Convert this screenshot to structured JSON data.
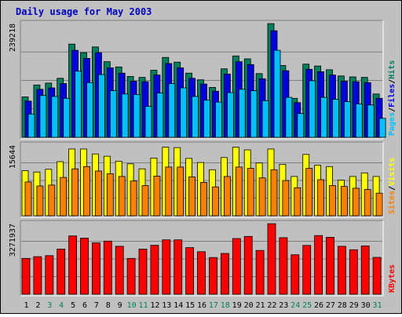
{
  "colors": {
    "background": "#c0c0c0",
    "title": "#0000c0",
    "hits": "#00805c",
    "files": "#0000e0",
    "pages": "#00c0ff",
    "visits": "#ffff00",
    "sites": "#ff8000",
    "kbytes": "#ff0000",
    "weekend_label": "#00805c",
    "weekday_label": "#000000"
  },
  "chart_data": {
    "title": "Daily usage for May 2003",
    "type": "bar",
    "categories": [
      "1",
      "2",
      "3",
      "4",
      "5",
      "6",
      "7",
      "8",
      "9",
      "10",
      "11",
      "12",
      "13",
      "14",
      "15",
      "16",
      "17",
      "18",
      "19",
      "20",
      "21",
      "22",
      "23",
      "24",
      "25",
      "26",
      "27",
      "28",
      "29",
      "30",
      "31"
    ],
    "weekend_days": [
      "3",
      "4",
      "10",
      "11",
      "17",
      "18",
      "24",
      "25",
      "31"
    ],
    "panels": [
      {
        "name": "hits-files-pages",
        "ymax_label": "239218",
        "ylim": [
          0,
          239218
        ],
        "legend": [
          {
            "text": "Pages",
            "color_key": "pages"
          },
          {
            "text": "/",
            "color_key": "separator"
          },
          {
            "text": "Files",
            "color_key": "files"
          },
          {
            "text": "/",
            "color_key": "separator"
          },
          {
            "text": "Hits",
            "color_key": "hits"
          }
        ],
        "series": [
          {
            "name": "Hits",
            "color_key": "hits",
            "values": [
              85000,
              110000,
              114000,
              124000,
              196000,
              178000,
              190000,
              159000,
              148000,
              128000,
              126000,
              141000,
              168000,
              158000,
              135000,
              121000,
              105000,
              144000,
              171000,
              165000,
              134000,
              239000,
              151000,
              82000,
              154000,
              150000,
              142000,
              129000,
              127000,
              126000,
              91000
            ]
          },
          {
            "name": "Files",
            "color_key": "files",
            "values": [
              76000,
              101000,
              104000,
              113000,
              183000,
              166000,
              178000,
              146000,
              135000,
              118000,
              117000,
              131000,
              155000,
              146000,
              124000,
              112000,
              97000,
              133000,
              159000,
              153000,
              123000,
              224000,
              140000,
              73000,
              143000,
              138000,
              131000,
              118000,
              117000,
              115000,
              82000
            ]
          },
          {
            "name": "Pages",
            "color_key": "pages",
            "values": [
              49000,
              88000,
              86000,
              82000,
              139000,
              115000,
              132000,
              98000,
              91000,
              90000,
              65000,
              93000,
              113000,
              104000,
              86000,
              78000,
              74000,
              94000,
              101000,
              98000,
              77000,
              183000,
              84000,
              50000,
              119000,
              84000,
              80000,
              75000,
              70000,
              68000,
              40000
            ]
          }
        ]
      },
      {
        "name": "visits-sites",
        "ymax_label": "15644",
        "ylim": [
          0,
          15644
        ],
        "legend": [
          {
            "text": "Sites",
            "color_key": "sites"
          },
          {
            "text": "/",
            "color_key": "separator"
          },
          {
            "text": "Visits",
            "color_key": "visits"
          }
        ],
        "series": [
          {
            "name": "Visits",
            "color_key": "visits",
            "values": [
              10000,
              9700,
              10300,
              12000,
              14800,
              14800,
              13700,
              13200,
              12100,
              11500,
              10400,
              12800,
              15200,
              15100,
              12700,
              11800,
              10200,
              12900,
              15200,
              14600,
              11700,
              14800,
              11400,
              8700,
              13600,
              11200,
              10900,
              7900,
              8700,
              9500,
              8700
            ]
          },
          {
            "name": "Sites",
            "color_key": "sites",
            "values": [
              7500,
              6600,
              6800,
              8500,
              10400,
              10900,
              9900,
              9300,
              8700,
              7700,
              6700,
              8800,
              10800,
              10800,
              8600,
              7400,
              6400,
              8700,
              10800,
              10500,
              8400,
              10200,
              7800,
              6200,
              10500,
              8000,
              6700,
              6500,
              6100,
              5800,
              5000
            ]
          }
        ]
      },
      {
        "name": "kbytes",
        "ymax_label": "3271937",
        "ylim": [
          0,
          3271937
        ],
        "legend": [
          {
            "text": "KBytes",
            "color_key": "kbytes"
          }
        ],
        "series": [
          {
            "name": "KBytes",
            "color_key": "kbytes",
            "values": [
              1660000,
              1740000,
              1790000,
              2090000,
              2700000,
              2600000,
              2380000,
              2460000,
              2220000,
              1660000,
              2090000,
              2270000,
              2520000,
              2520000,
              2160000,
              1970000,
              1700000,
              1890000,
              2580000,
              2680000,
              2030000,
              3270000,
              2620000,
              1830000,
              2260000,
              2720000,
              2640000,
              2220000,
              2060000,
              2240000,
              1710000
            ]
          }
        ]
      }
    ]
  }
}
